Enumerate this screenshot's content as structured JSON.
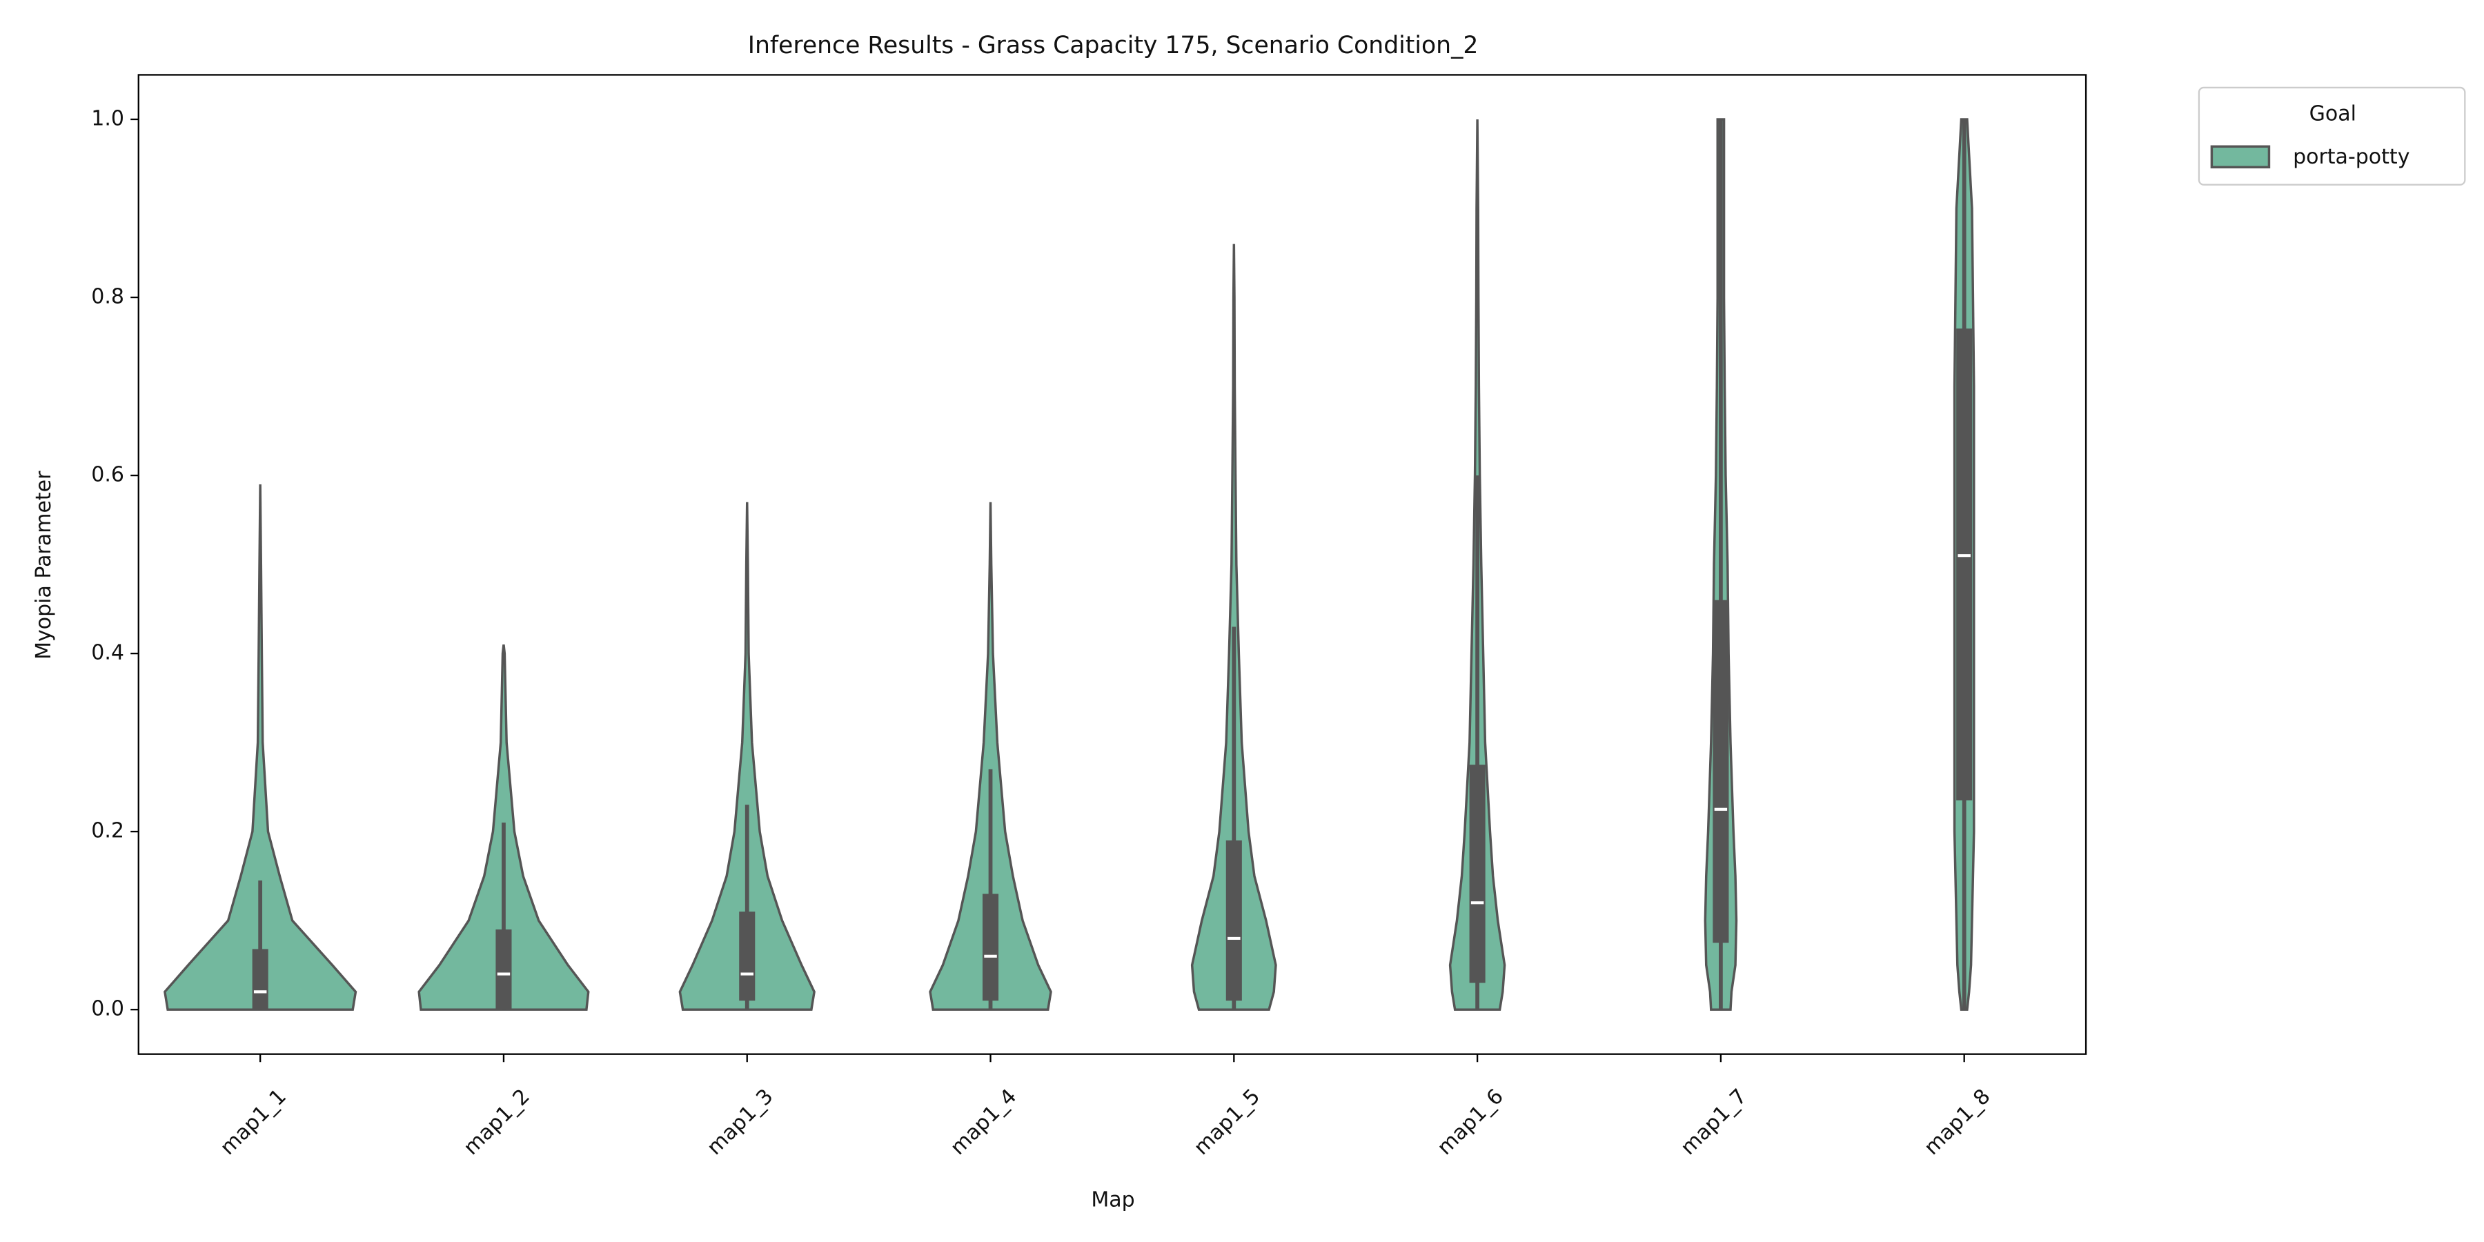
{
  "chart_data": {
    "type": "violin",
    "title": "Inference Results - Grass Capacity 175, Scenario Condition_2",
    "x_label": "Map",
    "y_label": "Myopia Parameter",
    "categories": [
      "map1_1",
      "map1_2",
      "map1_3",
      "map1_4",
      "map1_5",
      "map1_6",
      "map1_7",
      "map1_8"
    ],
    "legend_title": "Goal",
    "legend_position": "outside-upper-right",
    "ylim": [
      -0.05,
      1.05
    ],
    "yticks": [
      {
        "value": 0,
        "label": "0.0"
      },
      {
        "value": 0.2,
        "label": "0.2"
      },
      {
        "value": 0.4,
        "label": "0.4"
      },
      {
        "value": 0.6,
        "label": "0.6"
      },
      {
        "value": 0.8,
        "label": "0.8"
      },
      {
        "value": 1,
        "label": "1.0"
      }
    ],
    "density_levels": [
      0,
      0.02,
      0.05,
      0.1,
      0.15,
      0.2,
      0.3,
      0.4,
      0.5,
      0.6,
      0.7,
      0.8,
      0.9,
      1.0
    ],
    "series": [
      {
        "name": "porta-potty",
        "color": "#73b89e",
        "edge_color": "#555555",
        "whisker_low": [
          0,
          0,
          0,
          0,
          0,
          0,
          0,
          0
        ],
        "q1": [
          0,
          0,
          0.01,
          0.01,
          0.01,
          0.03,
          0.075,
          0.235
        ],
        "median": [
          0.02,
          0.04,
          0.04,
          0.06,
          0.08,
          0.12,
          0.225,
          0.51
        ],
        "q3": [
          0.068,
          0.09,
          0.11,
          0.13,
          0.19,
          0.275,
          0.46,
          0.765
        ],
        "whisker_high": [
          0.145,
          0.21,
          0.23,
          0.27,
          0.43,
          0.6,
          1.0,
          1.0
        ],
        "max": [
          0.59,
          0.41,
          0.57,
          0.57,
          0.86,
          1.0,
          1.0,
          1.0
        ],
        "density": [
          [
            0.95,
            0.98,
            0.74,
            0.33,
            0.2,
            0.08,
            0.025,
            0.016,
            0.008,
            null,
            null,
            null,
            null,
            null
          ],
          [
            0.85,
            0.87,
            0.66,
            0.36,
            0.2,
            0.11,
            0.03,
            0.01,
            null,
            null,
            null,
            null,
            null,
            null
          ],
          [
            0.66,
            0.69,
            0.56,
            0.36,
            0.21,
            0.13,
            0.05,
            0.016,
            0.008,
            null,
            null,
            null,
            null,
            null
          ],
          [
            0.59,
            0.62,
            0.49,
            0.33,
            0.23,
            0.15,
            0.07,
            0.025,
            0.008,
            null,
            null,
            null,
            null,
            null
          ],
          [
            0.36,
            0.41,
            0.43,
            0.33,
            0.21,
            0.15,
            0.08,
            0.05,
            0.025,
            0.016,
            0.008,
            0.005,
            null,
            null
          ],
          [
            0.23,
            0.26,
            0.28,
            0.21,
            0.16,
            0.13,
            0.08,
            0.06,
            0.04,
            0.025,
            0.016,
            0.011,
            0.008,
            0
          ],
          [
            0.1,
            0.11,
            0.15,
            0.16,
            0.15,
            0.13,
            0.1,
            0.08,
            0.07,
            0.05,
            0.04,
            0.033,
            0.033,
            0.033
          ],
          [
            0.03,
            0.05,
            0.07,
            0.08,
            0.09,
            0.1,
            0.1,
            0.1,
            0.1,
            0.1,
            0.1,
            0.09,
            0.08,
            0.03
          ]
        ]
      }
    ]
  }
}
